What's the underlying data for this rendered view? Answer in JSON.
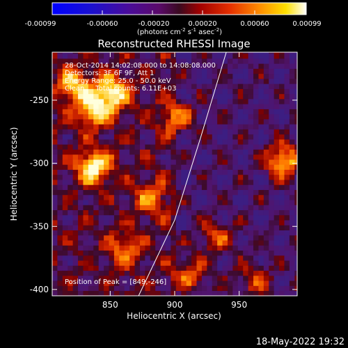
{
  "chart_data": {
    "type": "heatmap",
    "title": "Reconstructed RHESSI Image",
    "xlabel": "Heliocentric X (arcsec)",
    "ylabel": "Heliocentric Y (arcsec)",
    "xlim": [
      805,
      995
    ],
    "ylim": [
      -405,
      -212
    ],
    "xticks": [
      850,
      900,
      950
    ],
    "yticks": [
      -250,
      -300,
      -350,
      -400
    ],
    "colorbar": {
      "range": [
        -0.00099,
        0.00099
      ],
      "tick_labels": [
        "-0.00099",
        "-0.00060",
        "-0.00020",
        "0.00020",
        "0.00060",
        "0.00099"
      ],
      "unit_label": [
        "(photons cm",
        "-2",
        " s",
        "-1",
        " asec",
        "-2",
        ")"
      ]
    },
    "annotations": [
      "28-Oct-2014 14:02:08.000 to 14:08:08.000",
      "Detectors: 3F 6F 9F, Att 1",
      "Energy Range: 25.0 - 50.0 keV",
      "Clean     Total counts: 6.11E+03",
      "Position of Peak = [849,-246]"
    ],
    "limb_line": [
      [
        872,
        -405
      ],
      [
        900,
        -345
      ],
      [
        920,
        -280
      ],
      [
        940,
        -212
      ]
    ],
    "peak": [
      849,
      -246
    ],
    "hot_spots": [
      [
        835,
        -305,
        1.0
      ],
      [
        982,
        -300,
        0.95
      ],
      [
        850,
        -246,
        0.95
      ],
      [
        835,
        -260,
        0.85
      ],
      [
        820,
        -240,
        0.8
      ],
      [
        900,
        -265,
        0.6
      ],
      [
        910,
        -390,
        0.6
      ],
      [
        880,
        -330,
        0.55
      ],
      [
        930,
        -360,
        0.55
      ],
      [
        960,
        -395,
        0.5
      ],
      [
        860,
        -370,
        0.55
      ]
    ],
    "footer": "18-May-2022 19:32"
  }
}
